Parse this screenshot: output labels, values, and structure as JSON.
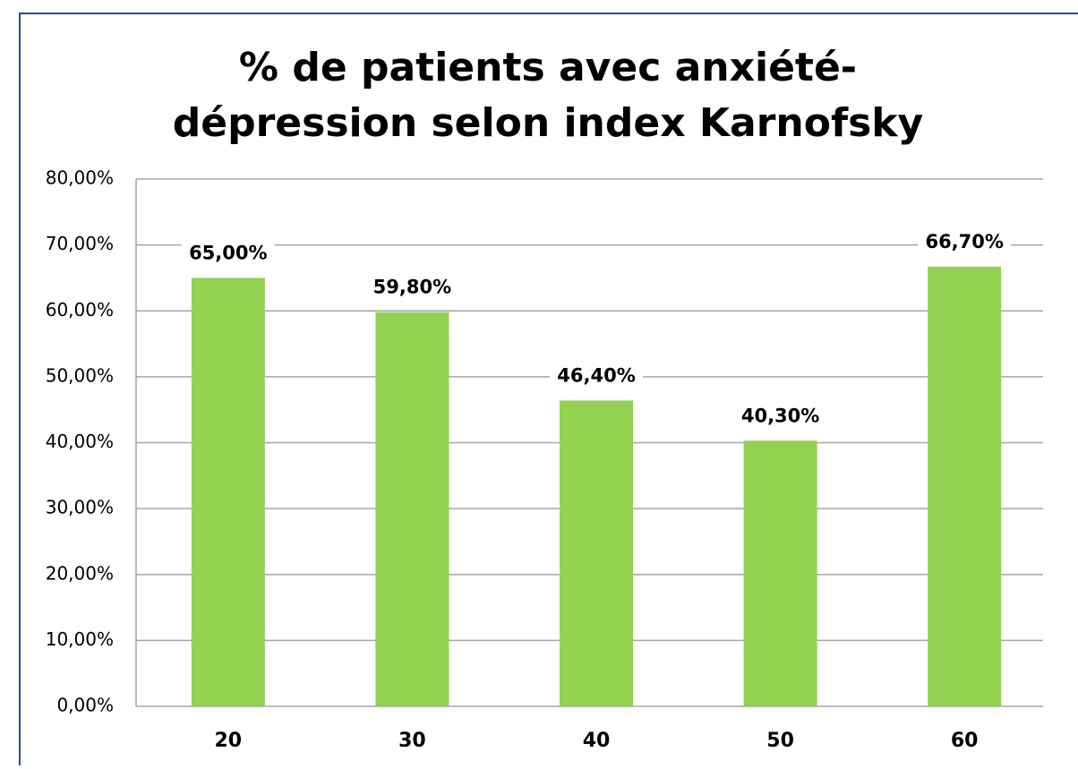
{
  "chart_data": {
    "type": "bar",
    "title": [
      "% de patients avec anxiété-",
      "dépression selon index Karnofsky"
    ],
    "categories": [
      "20",
      "30",
      "40",
      "50",
      "60"
    ],
    "values": [
      65,
      59.8,
      46.4,
      40.3,
      66.7
    ],
    "value_labels": [
      "65,00%",
      "59,80%",
      "46,40%",
      "40,30%",
      "66,70%"
    ],
    "color": "#92d050",
    "ylim": [
      0,
      80
    ],
    "yticks": [
      {
        "value": 0,
        "label": "0,00%"
      },
      {
        "value": 10,
        "label": "10,00%"
      },
      {
        "value": 20,
        "label": "20,00%"
      },
      {
        "value": 30,
        "label": "30,00%"
      },
      {
        "value": 40,
        "label": "40,00%"
      },
      {
        "value": 50,
        "label": "50,00%"
      },
      {
        "value": 60,
        "label": "60,00%"
      },
      {
        "value": 70,
        "label": "70,00%"
      },
      {
        "value": 80,
        "label": "80,00%"
      }
    ],
    "grid": true
  }
}
